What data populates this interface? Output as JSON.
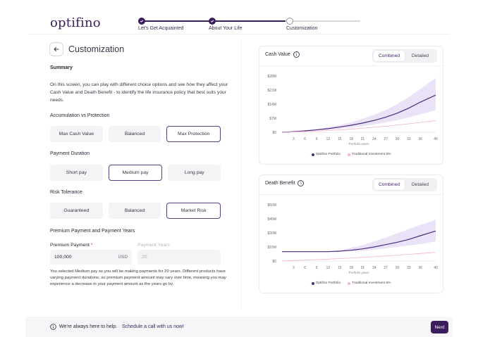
{
  "brand": {
    "logo_text": "optifino",
    "accent": "#3b1f5c",
    "light_accent": "#e6ddf5",
    "line_color": "#4b2d7f",
    "traditional_color": "#f3b5c8"
  },
  "stepper": {
    "steps": [
      {
        "label": "Let's Get Acquainted",
        "status": "done"
      },
      {
        "label": "About Your Life",
        "status": "done"
      },
      {
        "label": "Customization",
        "status": "current"
      }
    ]
  },
  "page": {
    "title": "Customization",
    "back_icon": "arrow-left-icon"
  },
  "summary": {
    "heading": "Summary",
    "text": "On this screen, you can play with different choice options and see how they affect your Cash Value and Death Benefit - to identify the life insurance policy that best suits your needs."
  },
  "accumulation": {
    "heading": "Accumulation vs Protection",
    "options": [
      "Max Cash Value",
      "Balanced",
      "Max Protection"
    ],
    "selected": "Max Protection"
  },
  "payment_duration": {
    "heading": "Payment Duration",
    "options": [
      "Short pay",
      "Medium pay",
      "Long pay"
    ],
    "selected": "Medium pay"
  },
  "risk": {
    "heading": "Risk Tolerance",
    "options": [
      "Guaranteed",
      "Balanced",
      "Market Risk"
    ],
    "selected": "Market Risk"
  },
  "premium": {
    "heading": "Premium Payment and Payment Years",
    "payment_label": "Premium Payment",
    "required_mark": "*",
    "payment_value": "100,000",
    "currency": "USD",
    "years_label": "Payment Years",
    "years_value": "20",
    "note": "You selected Medium pay so you will be making payments for 20 years. Different products have varying payment durations, so premium payment amount may vary over time, meaning you may experience a decrease in your payment amount as the years go by."
  },
  "toggle": {
    "combined": "Combined",
    "detailed": "Detailed",
    "active": "Combined"
  },
  "chart_data": [
    {
      "type": "area",
      "title": "Cash Value",
      "xlabel": "Portfolio years",
      "ylabel": "",
      "y_ticks": [
        "$0",
        "$7M",
        "$14M",
        "$21M",
        "$28M"
      ],
      "ylim": [
        0,
        28
      ],
      "x": [
        0,
        3,
        6,
        9,
        12,
        15,
        18,
        21,
        24,
        27,
        30,
        33,
        36,
        40
      ],
      "x_ticks": [
        3,
        6,
        9,
        12,
        15,
        18,
        21,
        24,
        27,
        30,
        33,
        36,
        40
      ],
      "series": [
        {
          "name": "Optifino Portfolio",
          "values": [
            0,
            0.3,
            0.7,
            1.2,
            1.8,
            2.6,
            3.5,
            4.6,
            5.9,
            7.5,
            9.5,
            12.0,
            15.0,
            18.5
          ]
        },
        {
          "name": "Traditional Investment 5%",
          "values": [
            0,
            0.2,
            0.4,
            0.6,
            0.9,
            1.2,
            1.6,
            2.0,
            2.5,
            3.0,
            3.6,
            4.2,
            4.9,
            5.8
          ]
        }
      ],
      "band": {
        "upper": [
          0,
          0.4,
          0.9,
          1.6,
          2.5,
          3.6,
          5.0,
          6.7,
          8.7,
          11.1,
          14.0,
          17.5,
          21.5,
          27.0
        ],
        "lower": [
          0,
          0.2,
          0.5,
          0.9,
          1.3,
          1.8,
          2.4,
          3.1,
          3.9,
          4.9,
          6.0,
          7.4,
          9.0,
          11.0
        ]
      },
      "legend_position": "bottom",
      "grid": false
    },
    {
      "type": "area",
      "title": "Death Benefit",
      "xlabel": "Portfolio years",
      "ylabel": "",
      "y_ticks": [
        "$0",
        "$15M",
        "$30M",
        "$45M",
        "$60M"
      ],
      "ylim": [
        0,
        60
      ],
      "x": [
        0,
        3,
        6,
        9,
        12,
        15,
        18,
        21,
        24,
        27,
        30,
        33,
        36,
        40
      ],
      "x_ticks": [
        3,
        6,
        9,
        12,
        15,
        18,
        21,
        24,
        27,
        30,
        33,
        36,
        40
      ],
      "series": [
        {
          "name": "Optifino Portfolio",
          "values": [
            10,
            10,
            10,
            10,
            10,
            10.5,
            11.5,
            13,
            15,
            17.5,
            20,
            23,
            27,
            32
          ]
        },
        {
          "name": "Traditional Investment 5%",
          "values": [
            0,
            0.5,
            1.0,
            1.5,
            2.0,
            2.6,
            3.2,
            3.9,
            4.6,
            5.4,
            6.2,
            7.1,
            8.0,
            9.3
          ]
        }
      ],
      "band": {
        "upper": [
          10,
          10,
          10,
          10,
          10,
          11.5,
          14,
          17,
          21,
          25,
          29.5,
          34,
          38.5,
          44
        ],
        "lower": [
          10,
          10,
          10,
          10,
          10,
          10,
          10.5,
          11,
          12,
          13.5,
          15,
          16.5,
          18,
          21
        ]
      },
      "legend_position": "bottom",
      "grid": false
    }
  ],
  "footer": {
    "help_text": "We're always here to help.",
    "link_text": "Schedule a call with us now!",
    "next_label": "Next",
    "info_icon": "info-icon"
  }
}
